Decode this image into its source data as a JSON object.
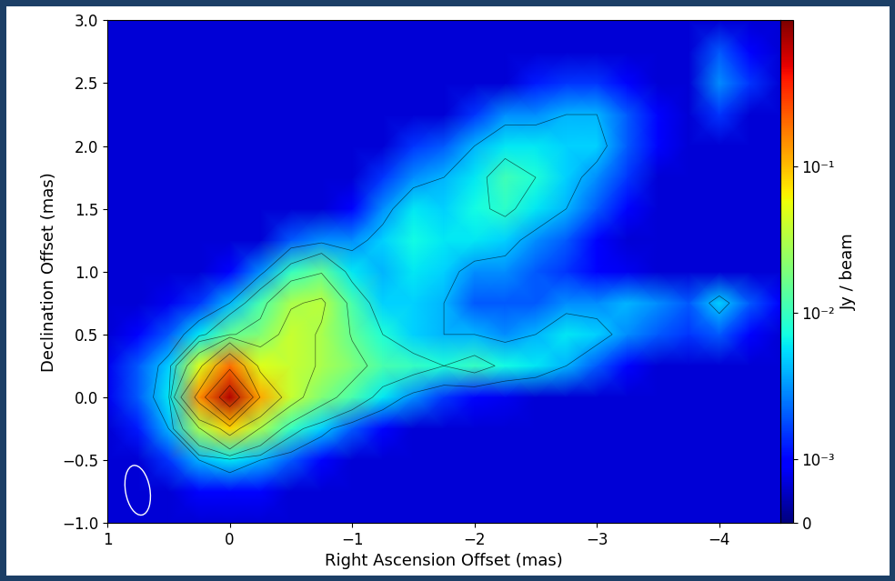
{
  "chart_data": {
    "type": "heatmap",
    "xlabel": "Right Ascension Offset (mas)",
    "ylabel": "Declination Offset (mas)",
    "xlim": [
      1,
      -4.5
    ],
    "xticks": [
      1,
      0,
      {
        "value": -1,
        "label": "−1"
      },
      {
        "value": -2,
        "label": "−2"
      },
      {
        "value": -3,
        "label": "−3"
      },
      {
        "value": -4,
        "label": "−4"
      }
    ],
    "ylim": [
      -1,
      3
    ],
    "yticks": [
      {
        "value": -1,
        "label": "−1.0"
      },
      {
        "value": -0.5,
        "label": "−0.5"
      },
      {
        "value": 0,
        "label": "0.0"
      },
      0.5,
      {
        "value": 1,
        "label": "1.0"
      },
      1.5,
      {
        "value": 2,
        "label": "2.0"
      },
      2.5,
      {
        "value": 3,
        "label": "3.0"
      }
    ],
    "x": [
      1.0,
      0.75,
      0.5,
      0.25,
      0.0,
      -0.25,
      -0.5,
      -0.75,
      -1.0,
      -1.25,
      -1.5,
      -1.75,
      -2.0,
      -2.25,
      -2.5,
      -2.75,
      -3.0,
      -3.25,
      -3.5,
      -3.75,
      -4.0,
      -4.25,
      -4.5
    ],
    "y": [
      -1.0,
      -0.75,
      -0.5,
      -0.25,
      0.0,
      0.25,
      0.5,
      0.75,
      1.0,
      1.25,
      1.5,
      1.75,
      2.0,
      2.25,
      2.5,
      2.75,
      3.0
    ],
    "cells": [
      [
        0.0006,
        0.0006,
        0.0006,
        0.0006,
        0.0006,
        0.0006,
        0.0006,
        0.0006,
        0.0006,
        0.0006,
        0.0006,
        0.0006,
        0.0006,
        0.0006,
        0.0006,
        0.0006,
        0.0006,
        0.0006,
        0.0006,
        0.0006,
        0.0006,
        0.0006,
        0.0006
      ],
      [
        0.0006,
        0.0006,
        0.0006,
        0.001,
        0.001,
        0.001,
        0.0006,
        0.0006,
        0.0006,
        0.0006,
        0.0006,
        0.0006,
        0.0006,
        0.0006,
        0.0006,
        0.0006,
        0.0006,
        0.0006,
        0.0006,
        0.0006,
        0.0006,
        0.0006,
        0.0006
      ],
      [
        0.0006,
        0.0006,
        0.0015,
        0.004,
        0.006,
        0.004,
        0.002,
        0.001,
        0.0006,
        0.0006,
        0.0006,
        0.0006,
        0.0006,
        0.0006,
        0.0006,
        0.0006,
        0.0006,
        0.0006,
        0.0006,
        0.0006,
        0.0006,
        0.0006,
        0.0006
      ],
      [
        0.0006,
        0.0012,
        0.004,
        0.03,
        0.08,
        0.03,
        0.01,
        0.005,
        0.002,
        0.001,
        0.0006,
        0.0006,
        0.0006,
        0.0006,
        0.0006,
        0.0006,
        0.0006,
        0.0006,
        0.0006,
        0.0006,
        0.0006,
        0.0006,
        0.0006
      ],
      [
        0.0008,
        0.002,
        0.006,
        0.15,
        0.7,
        0.12,
        0.04,
        0.02,
        0.012,
        0.006,
        0.003,
        0.0015,
        0.001,
        0.0008,
        0.0006,
        0.0006,
        0.0006,
        0.0006,
        0.0006,
        0.0006,
        0.0006,
        0.0006,
        0.0006
      ],
      [
        0.0008,
        0.002,
        0.005,
        0.05,
        0.2,
        0.05,
        0.04,
        0.03,
        0.02,
        0.012,
        0.01,
        0.008,
        0.01,
        0.007,
        0.006,
        0.004,
        0.002,
        0.001,
        0.0006,
        0.0006,
        0.0006,
        0.0006,
        0.0006
      ],
      [
        0.0006,
        0.001,
        0.002,
        0.006,
        0.015,
        0.02,
        0.04,
        0.03,
        0.015,
        0.008,
        0.005,
        0.004,
        0.004,
        0.003,
        0.004,
        0.006,
        0.005,
        0.003,
        0.002,
        0.0015,
        0.002,
        0.001,
        0.0006
      ],
      [
        0.0006,
        0.0006,
        0.0008,
        0.0015,
        0.004,
        0.012,
        0.03,
        0.035,
        0.012,
        0.005,
        0.005,
        0.004,
        0.002,
        0.002,
        0.002,
        0.003,
        0.003,
        0.004,
        0.003,
        0.002,
        0.005,
        0.002,
        0.001
      ],
      [
        0.0006,
        0.0006,
        0.0006,
        0.0006,
        0.001,
        0.003,
        0.01,
        0.015,
        0.006,
        0.004,
        0.006,
        0.005,
        0.003,
        0.003,
        0.002,
        0.0015,
        0.001,
        0.0008,
        0.0006,
        0.0006,
        0.0006,
        0.0006,
        0.0006
      ],
      [
        0.0006,
        0.0006,
        0.0006,
        0.0006,
        0.0006,
        0.0006,
        0.002,
        0.003,
        0.003,
        0.005,
        0.007,
        0.006,
        0.006,
        0.005,
        0.003,
        0.002,
        0.001,
        0.0006,
        0.0006,
        0.0006,
        0.0006,
        0.0006,
        0.0006
      ],
      [
        0.0006,
        0.0006,
        0.0006,
        0.0006,
        0.0006,
        0.0006,
        0.0006,
        0.0006,
        0.001,
        0.003,
        0.006,
        0.005,
        0.007,
        0.009,
        0.006,
        0.004,
        0.002,
        0.001,
        0.0006,
        0.0006,
        0.0006,
        0.0006,
        0.0006
      ],
      [
        0.0006,
        0.0006,
        0.0006,
        0.0006,
        0.0006,
        0.0006,
        0.0006,
        0.0006,
        0.0006,
        0.0015,
        0.003,
        0.004,
        0.006,
        0.011,
        0.008,
        0.005,
        0.003,
        0.0015,
        0.0006,
        0.0006,
        0.0006,
        0.0006,
        0.0006
      ],
      [
        0.0006,
        0.0006,
        0.0006,
        0.0006,
        0.0006,
        0.0006,
        0.0006,
        0.0006,
        0.0006,
        0.0006,
        0.0015,
        0.002,
        0.004,
        0.006,
        0.006,
        0.005,
        0.005,
        0.002,
        0.001,
        0.0006,
        0.0006,
        0.0006,
        0.0006
      ],
      [
        0.0006,
        0.0006,
        0.0006,
        0.0006,
        0.0006,
        0.0006,
        0.0006,
        0.0006,
        0.0006,
        0.0006,
        0.0006,
        0.0006,
        0.0015,
        0.003,
        0.003,
        0.004,
        0.004,
        0.002,
        0.001,
        0.0006,
        0.0015,
        0.0006,
        0.0006
      ],
      [
        0.0006,
        0.0006,
        0.0006,
        0.0006,
        0.0006,
        0.0006,
        0.0006,
        0.0006,
        0.0006,
        0.0006,
        0.0006,
        0.0006,
        0.0006,
        0.0006,
        0.0012,
        0.0015,
        0.0015,
        0.001,
        0.0006,
        0.0006,
        0.003,
        0.0015,
        0.0006
      ],
      [
        0.0006,
        0.0006,
        0.0006,
        0.0006,
        0.0006,
        0.0006,
        0.0006,
        0.0006,
        0.0006,
        0.0006,
        0.0006,
        0.0006,
        0.0006,
        0.0006,
        0.0006,
        0.0006,
        0.0006,
        0.0006,
        0.0006,
        0.0006,
        0.002,
        0.001,
        0.0006
      ],
      [
        0.0006,
        0.0006,
        0.0006,
        0.0006,
        0.0006,
        0.0006,
        0.0006,
        0.0006,
        0.0006,
        0.0006,
        0.0006,
        0.0006,
        0.0006,
        0.0006,
        0.0006,
        0.0006,
        0.0006,
        0.0006,
        0.0006,
        0.0006,
        0.0006,
        0.0006,
        0.0006
      ]
    ],
    "contour_levels": [
      0.004,
      0.008,
      0.016,
      0.032,
      0.064,
      0.128,
      0.256,
      0.512
    ],
    "beam": {
      "major": 0.4,
      "minor": 0.2,
      "angle": -10
    },
    "colorbar": {
      "label": "Jy / beam",
      "range": [
        0,
        1.0
      ],
      "ticks": [
        0,
        {
          "value": 0.001,
          "label": "10⁻³"
        },
        {
          "value": 0.01,
          "label": "10⁻²"
        },
        {
          "value": 0.1,
          "label": "10⁻¹"
        }
      ]
    }
  }
}
